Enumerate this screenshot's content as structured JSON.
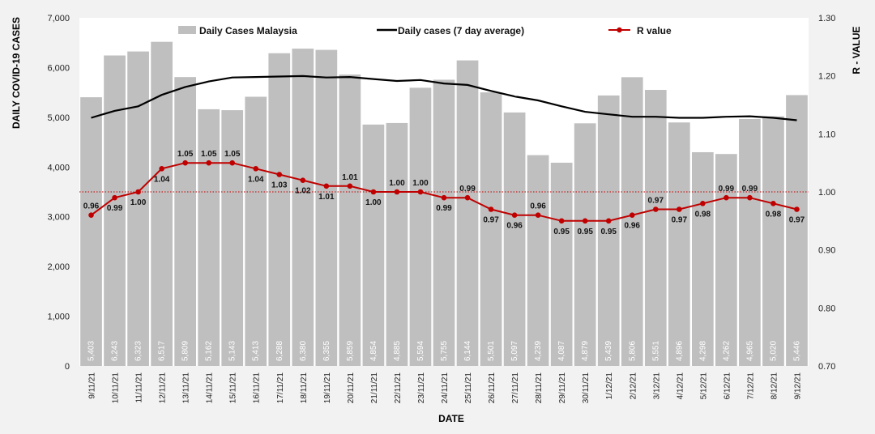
{
  "chart_data": {
    "type": "bar",
    "categories": [
      "9/11/21",
      "10/11/21",
      "11/11/21",
      "12/11/21",
      "13/11/21",
      "14/11/21",
      "15/11/21",
      "16/11/21",
      "17/11/21",
      "18/11/21",
      "19/11/21",
      "20/11/21",
      "21/11/21",
      "22/11/21",
      "23/11/21",
      "24/11/21",
      "25/11/21",
      "26/11/21",
      "27/11/21",
      "28/11/21",
      "29/11/21",
      "30/11/21",
      "1/12/21",
      "2/12/21",
      "3/12/21",
      "4/12/21",
      "5/12/21",
      "6/12/21",
      "7/12/21",
      "8/12/21",
      "9/12/21"
    ],
    "series": [
      {
        "name": "Daily Cases Malaysia",
        "type": "bar",
        "axis": "left",
        "color": "#bfbfbf",
        "values": [
          5403,
          6243,
          6323,
          6517,
          5809,
          5162,
          5143,
          5413,
          6288,
          6380,
          6355,
          5859,
          4854,
          4885,
          5594,
          5755,
          6144,
          5501,
          5097,
          4239,
          4087,
          4879,
          5439,
          5806,
          5551,
          4896,
          4298,
          4262,
          4965,
          5020,
          5446
        ],
        "labels": [
          "5,403",
          "6,243",
          "6,323",
          "6,517",
          "5,809",
          "5,162",
          "5,143",
          "5,413",
          "6,288",
          "6,380",
          "6,355",
          "5,859",
          "4,854",
          "4,885",
          "5,594",
          "5,755",
          "6,144",
          "5,501",
          "5,097",
          "4,239",
          "4,087",
          "4,879",
          "5,439",
          "5,806",
          "5,551",
          "4,896",
          "4,298",
          "4,262",
          "4,965",
          "5,020",
          "5,446"
        ]
      },
      {
        "name": "Daily cases (7 day average)",
        "type": "line",
        "axis": "left",
        "color": "#000000",
        "values": [
          4990,
          5130,
          5220,
          5450,
          5610,
          5720,
          5800,
          5810,
          5820,
          5830,
          5800,
          5810,
          5770,
          5730,
          5750,
          5680,
          5650,
          5530,
          5420,
          5340,
          5220,
          5110,
          5060,
          5010,
          5010,
          4990,
          4990,
          5010,
          5020,
          4990,
          4940
        ]
      },
      {
        "name": "R value",
        "type": "line",
        "axis": "right",
        "color": "#c00000",
        "values": [
          0.96,
          0.99,
          1.0,
          1.04,
          1.05,
          1.05,
          1.05,
          1.04,
          1.03,
          1.02,
          1.01,
          1.01,
          1.0,
          1.0,
          1.0,
          0.99,
          0.99,
          0.97,
          0.96,
          0.96,
          0.95,
          0.95,
          0.95,
          0.96,
          0.97,
          0.97,
          0.98,
          0.99,
          0.99,
          0.98,
          0.97
        ],
        "labels": [
          "0.96",
          "0.99",
          "1.00",
          "1.04",
          "1.05",
          "1.05",
          "1.05",
          "1.04",
          "1.03",
          "1.02",
          "1.01",
          "1.01",
          "1.00",
          "1.00",
          "1.00",
          "0.99",
          "0.99",
          "0.97",
          "0.96",
          "0.96",
          "0.95",
          "0.95",
          "0.95",
          "0.96",
          "0.97",
          "0.97",
          "0.98",
          "0.99",
          "0.99",
          "0.98",
          "0.97"
        ]
      }
    ],
    "reference_line": {
      "axis": "right",
      "value": 1.0,
      "style": "dotted",
      "color": "#c00000"
    },
    "xlabel": "DATE",
    "ylabel": "DAILY COVID-19 CASES",
    "y2label": "R - VALUE",
    "ylim": [
      0,
      7000
    ],
    "y2lim": [
      0.7,
      1.3
    ],
    "yticks": [
      "0",
      "1,000",
      "2,000",
      "3,000",
      "4,000",
      "5,000",
      "6,000",
      "7,000"
    ],
    "y2ticks": [
      "0.70",
      "0.80",
      "0.90",
      "1.00",
      "1.10",
      "1.20",
      "1.30"
    ],
    "grid": false,
    "legend": "top"
  }
}
